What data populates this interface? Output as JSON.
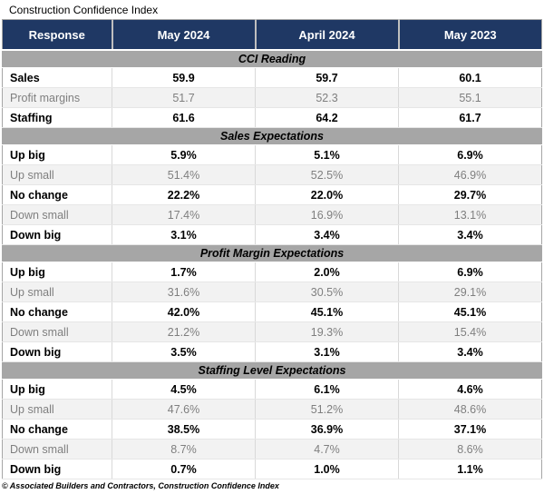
{
  "colors": {
    "header_bg": "#1f3864",
    "header_text": "#ffffff",
    "section_band_bg": "#a6a6a6",
    "row_alt_bg": "#f2f2f2",
    "muted_text": "#7f7f7f",
    "border": "#d9d9d9"
  },
  "chart_data": {
    "type": "table",
    "title": "Construction Confidence Index",
    "columns": [
      "Response",
      "May 2024",
      "April 2024",
      "May 2023"
    ],
    "sections": [
      {
        "name": "CCI Reading",
        "rows": [
          {
            "label": "Sales",
            "values": [
              "59.9",
              "59.7",
              "60.1"
            ],
            "emphasis": true
          },
          {
            "label": "Profit margins",
            "values": [
              "51.7",
              "52.3",
              "55.1"
            ],
            "emphasis": false
          },
          {
            "label": "Staffing",
            "values": [
              "61.6",
              "64.2",
              "61.7"
            ],
            "emphasis": true
          }
        ]
      },
      {
        "name": "Sales Expectations",
        "rows": [
          {
            "label": "Up big",
            "values": [
              "5.9%",
              "5.1%",
              "6.9%"
            ],
            "emphasis": true
          },
          {
            "label": "Up small",
            "values": [
              "51.4%",
              "52.5%",
              "46.9%"
            ],
            "emphasis": false
          },
          {
            "label": "No change",
            "values": [
              "22.2%",
              "22.0%",
              "29.7%"
            ],
            "emphasis": true
          },
          {
            "label": "Down small",
            "values": [
              "17.4%",
              "16.9%",
              "13.1%"
            ],
            "emphasis": false
          },
          {
            "label": "Down big",
            "values": [
              "3.1%",
              "3.4%",
              "3.4%"
            ],
            "emphasis": true
          }
        ]
      },
      {
        "name": "Profit Margin Expectations",
        "rows": [
          {
            "label": "Up big",
            "values": [
              "1.7%",
              "2.0%",
              "6.9%"
            ],
            "emphasis": true
          },
          {
            "label": "Up small",
            "values": [
              "31.6%",
              "30.5%",
              "29.1%"
            ],
            "emphasis": false
          },
          {
            "label": "No change",
            "values": [
              "42.0%",
              "45.1%",
              "45.1%"
            ],
            "emphasis": true
          },
          {
            "label": "Down small",
            "values": [
              "21.2%",
              "19.3%",
              "15.4%"
            ],
            "emphasis": false
          },
          {
            "label": "Down big",
            "values": [
              "3.5%",
              "3.1%",
              "3.4%"
            ],
            "emphasis": true
          }
        ]
      },
      {
        "name": "Staffing Level Expectations",
        "rows": [
          {
            "label": "Up big",
            "values": [
              "4.5%",
              "6.1%",
              "4.6%"
            ],
            "emphasis": true
          },
          {
            "label": "Up small",
            "values": [
              "47.6%",
              "51.2%",
              "48.6%"
            ],
            "emphasis": false
          },
          {
            "label": "No change",
            "values": [
              "38.5%",
              "36.9%",
              "37.1%"
            ],
            "emphasis": true
          },
          {
            "label": "Down small",
            "values": [
              "8.7%",
              "4.7%",
              "8.6%"
            ],
            "emphasis": false
          },
          {
            "label": "Down big",
            "values": [
              "0.7%",
              "1.0%",
              "1.1%"
            ],
            "emphasis": true
          }
        ]
      }
    ],
    "source_note": "© Associated Builders and Contractors, Construction Confidence Index"
  }
}
